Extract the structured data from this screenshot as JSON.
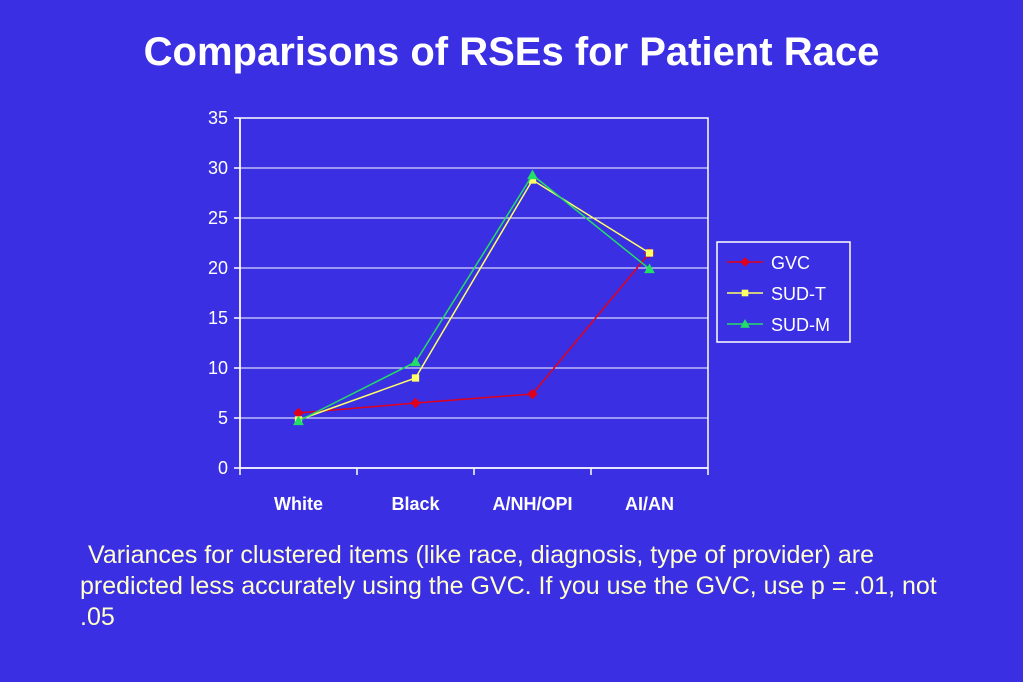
{
  "slide": {
    "title": "Comparisons of RSEs for Patient Race",
    "caption": "Variances for clustered items (like race, diagnosis, type of provider) are predicted less accurately using the GVC.  If you use the GVC, use p = .01, not .05"
  },
  "colors": {
    "background": "#3a2fe3",
    "title": "#ffffff",
    "caption": "#ffffcc",
    "axis": "#ffffff",
    "gridline": "#ffffff"
  },
  "chart_data": {
    "type": "line",
    "title": "",
    "xlabel": "",
    "ylabel": "",
    "categories": [
      "White",
      "Black",
      "A/NH/OPI",
      "AI/AN"
    ],
    "ylim": [
      0,
      35
    ],
    "yticks": [
      0,
      5,
      10,
      15,
      20,
      25,
      30,
      35
    ],
    "grid": true,
    "legend": "right",
    "series": [
      {
        "name": "GVC",
        "values": [
          5.5,
          6.5,
          7.4,
          21.5
        ],
        "color": "#e0001b",
        "marker": "diamond"
      },
      {
        "name": "SUD-T",
        "values": [
          4.8,
          9.0,
          28.8,
          21.5
        ],
        "color": "#ffff66",
        "marker": "square"
      },
      {
        "name": "SUD-M",
        "values": [
          4.7,
          10.6,
          29.3,
          19.9
        ],
        "color": "#22dd66",
        "marker": "triangle"
      }
    ]
  }
}
